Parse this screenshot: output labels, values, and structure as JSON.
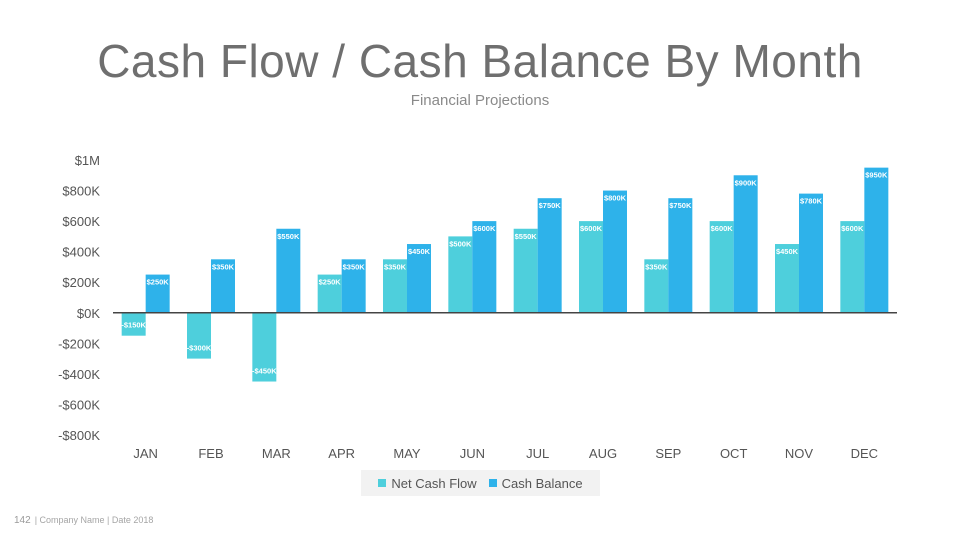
{
  "slide": {
    "title": "Cash Flow / Cash Balance By Month",
    "subtitle": "Financial Projections",
    "page_number": "142",
    "footer_text": "| Company Name | Date 2018"
  },
  "colors": {
    "net_cash_flow": "#4ecfdc",
    "cash_balance": "#2eb2ea",
    "axis": "#444444",
    "tick_text": "#555555"
  },
  "legend": {
    "items": [
      {
        "label": "Net Cash Flow",
        "color": "#4ecfdc"
      },
      {
        "label": "Cash Balance",
        "color": "#2eb2ea"
      }
    ]
  },
  "chart_data": {
    "type": "bar",
    "title": "Cash Flow / Cash Balance By Month",
    "subtitle": "Financial Projections",
    "categories": [
      "JAN",
      "FEB",
      "MAR",
      "APR",
      "MAY",
      "JUN",
      "JUL",
      "AUG",
      "SEP",
      "OCT",
      "NOV",
      "DEC"
    ],
    "series": [
      {
        "name": "Net Cash Flow",
        "values": [
          -150,
          -300,
          -450,
          250,
          350,
          500,
          550,
          600,
          350,
          600,
          450,
          600
        ],
        "labels": [
          "-$150K",
          "-$300K",
          "-$450K",
          "$250K",
          "$350K",
          "$500K",
          "$550K",
          "$600K",
          "$350K",
          "$600K",
          "$450K",
          "$600K"
        ]
      },
      {
        "name": "Cash Balance",
        "values": [
          250,
          350,
          550,
          350,
          450,
          600,
          750,
          800,
          750,
          900,
          780,
          950
        ],
        "labels": [
          "$250K",
          "$350K",
          "$550K",
          "$350K",
          "$450K",
          "$600K",
          "$750K",
          "$800K",
          "$750K",
          "$900K",
          "$780K",
          "$950K"
        ]
      }
    ],
    "ylim": [
      -800,
      1000
    ],
    "y_ticks": [
      1000,
      800,
      600,
      400,
      200,
      0,
      -200,
      -400,
      -600,
      -800
    ],
    "y_tick_labels": [
      "$1M",
      "$800K",
      "$600K",
      "$400K",
      "$200K",
      "$0K",
      "-$200K",
      "-$400K",
      "-$600K",
      "-$800K"
    ],
    "xlabel": "",
    "ylabel": "",
    "grid": false,
    "legend_position": "bottom"
  }
}
